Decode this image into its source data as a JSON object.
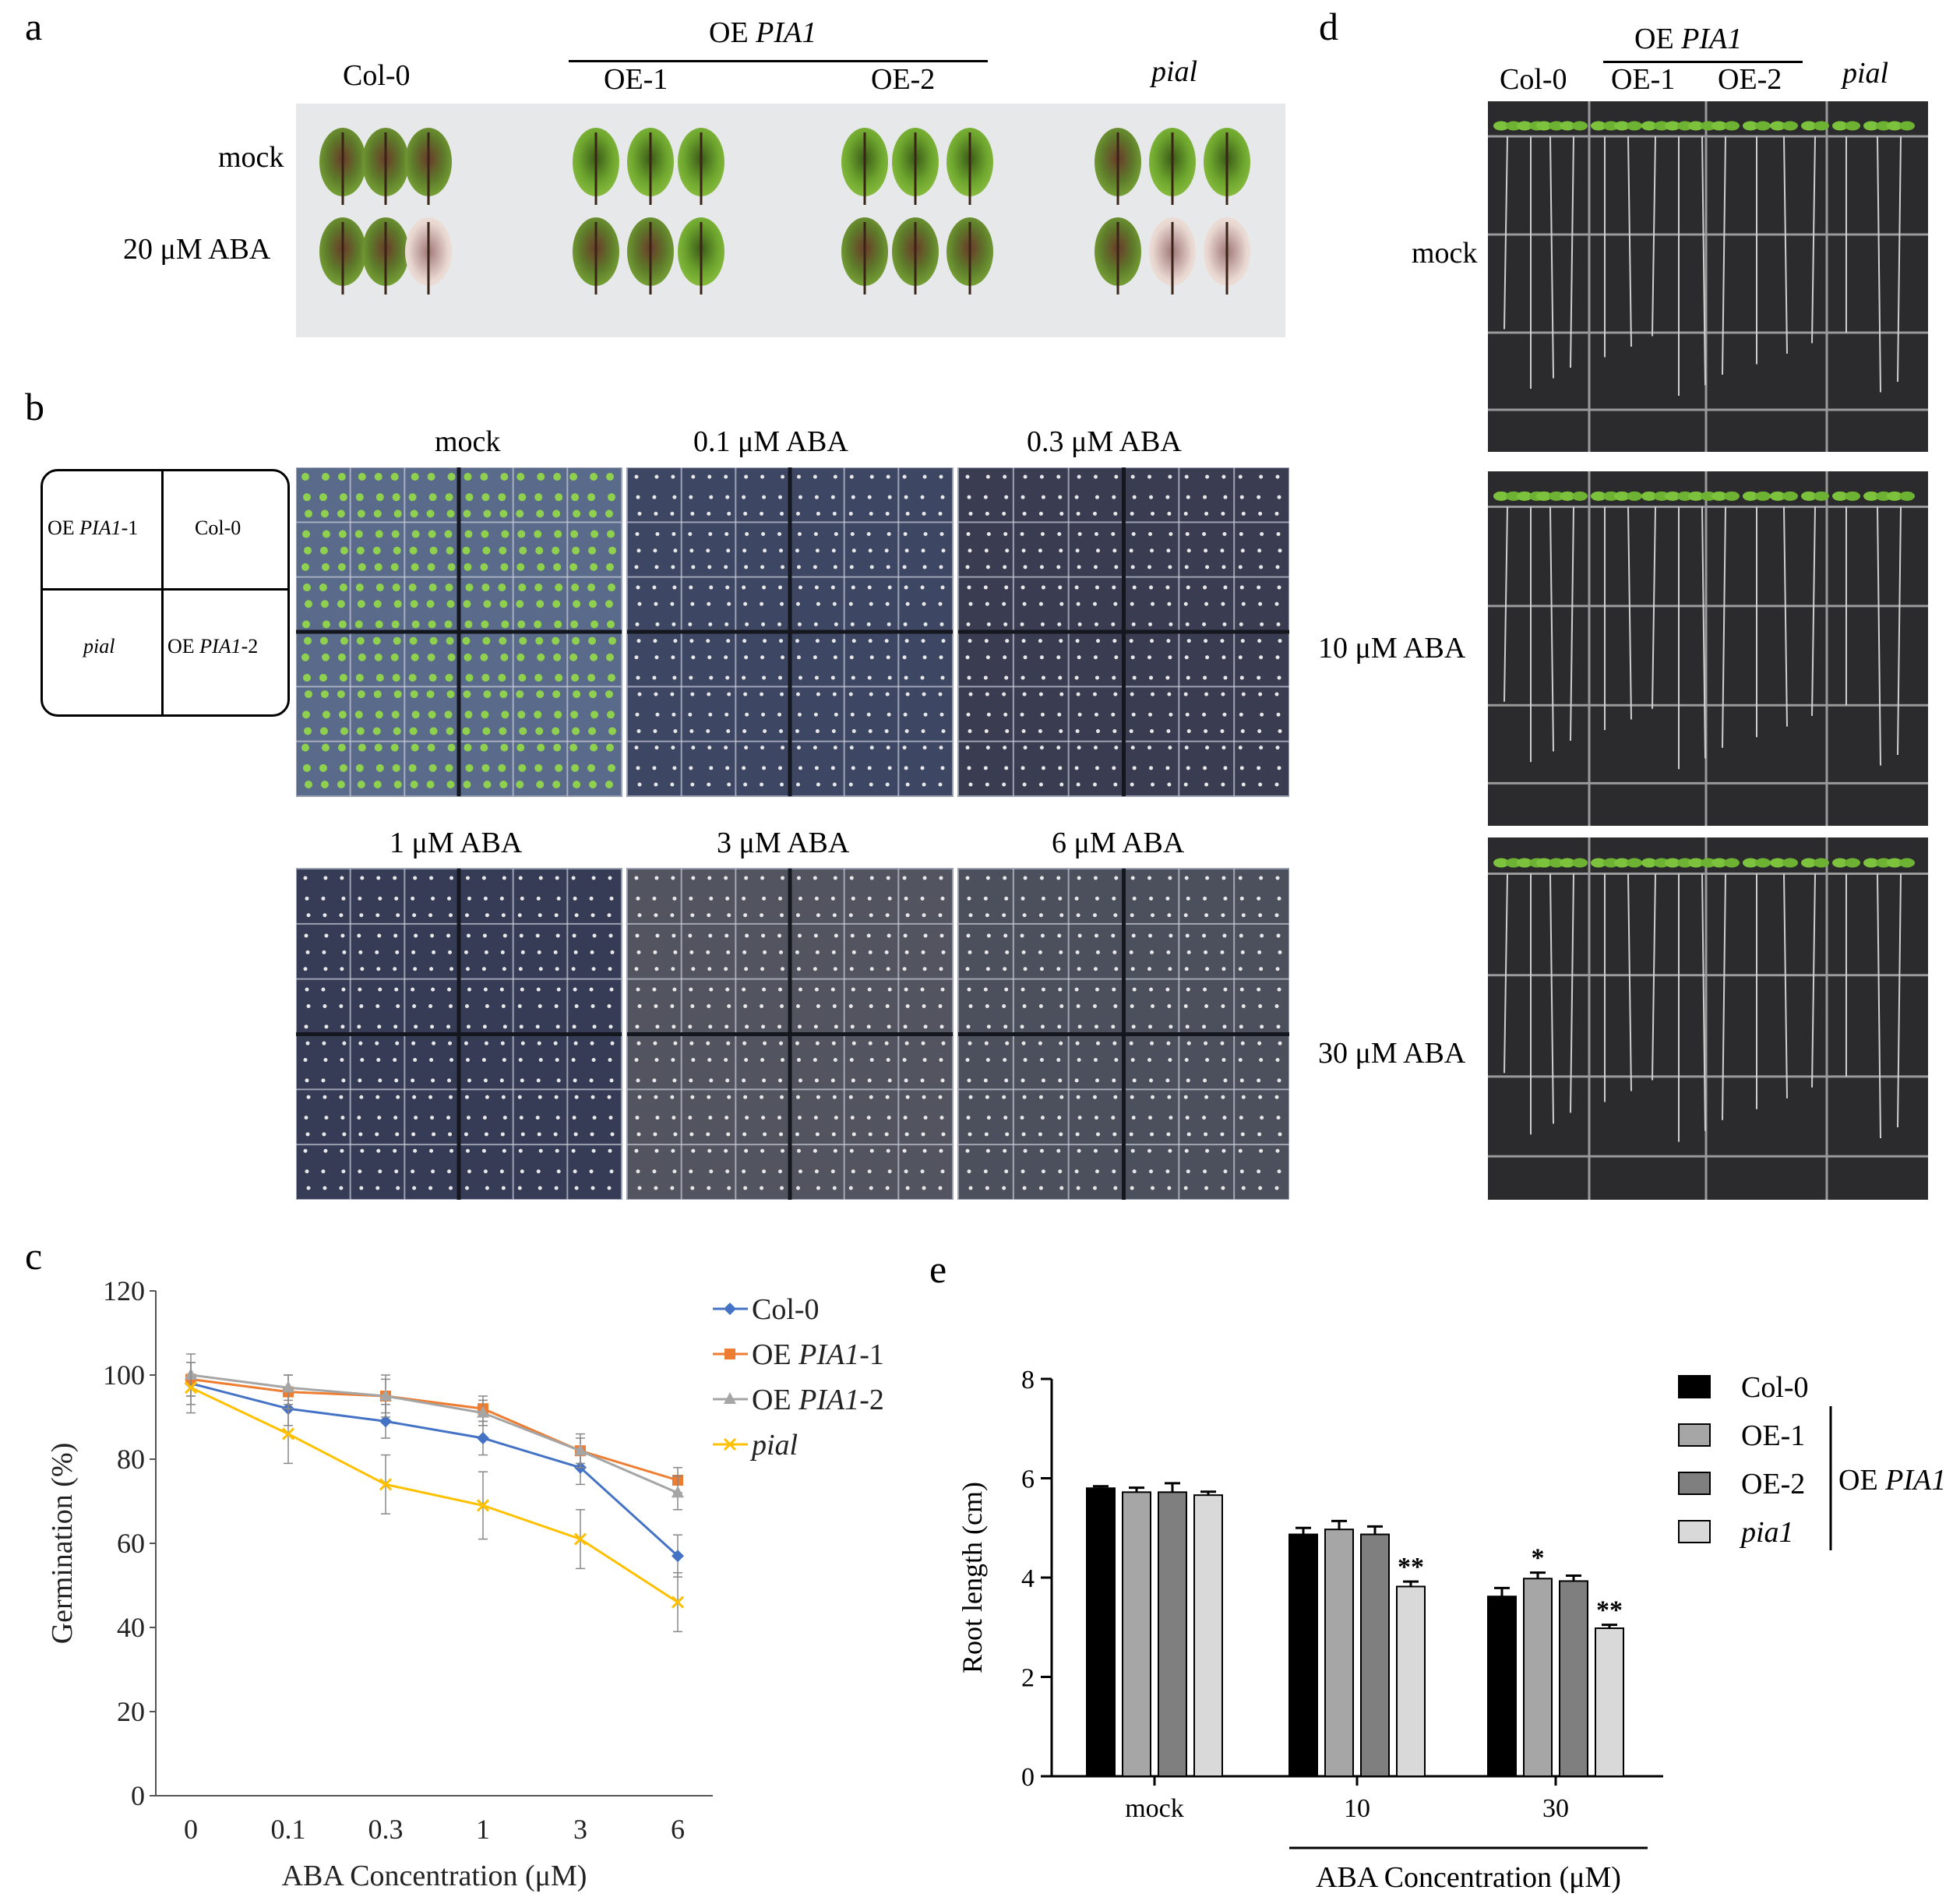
{
  "panel_labels": {
    "a": "a",
    "b": "b",
    "c": "c",
    "d": "d",
    "e": "e"
  },
  "panel_a": {
    "group_label": "OE ",
    "group_gene": "PIA1",
    "columns": [
      "Col-0",
      "OE-1",
      "OE-2",
      "pial"
    ],
    "rows": [
      "mock",
      "20 μM ABA"
    ]
  },
  "panel_b": {
    "layout_key": {
      "top_left_prefix": "OE ",
      "top_left_gene": "PIA1",
      "top_left_suffix": "-1",
      "top_right": "Col-0",
      "bottom_left": "pial",
      "bottom_right_prefix": "OE ",
      "bottom_right_gene": "PIA1",
      "bottom_right_suffix": "-2"
    },
    "plates": [
      "mock",
      "0.1 μM ABA",
      "0.3 μM ABA",
      "1 μM ABA",
      "3 μM ABA",
      "6 μM ABA"
    ]
  },
  "panel_d": {
    "group_label": "OE ",
    "group_gene": "PIA1",
    "columns": [
      "Col-0",
      "OE-1",
      "OE-2",
      "pial"
    ],
    "rows": [
      "mock",
      "10 μM ABA",
      "30 μM ABA"
    ]
  },
  "chart_data": [
    {
      "type": "line",
      "panel": "c",
      "categories": [
        "0",
        "0.1",
        "0.3",
        "1",
        "3",
        "6"
      ],
      "xlabel": "ABA Concentration (μM)",
      "ylabel": "Germination (%)",
      "ylim": [
        0,
        120
      ],
      "yticks": [
        0,
        20,
        40,
        60,
        80,
        100,
        120
      ],
      "legend_position": "top-right",
      "series": [
        {
          "name": "Col-0",
          "name_prefix": "",
          "name_gene": "",
          "name_suffix": "Col-0",
          "color": "#4472c4",
          "marker": "diamond",
          "values": [
            98,
            92,
            89,
            85,
            78,
            57
          ],
          "errors": [
            5,
            4,
            4,
            4,
            4,
            5
          ]
        },
        {
          "name": "OE PIA1-1",
          "name_prefix": "OE ",
          "name_gene": "PIA1",
          "name_suffix": "-1",
          "color": "#ed7d31",
          "marker": "square",
          "values": [
            99,
            96,
            95,
            92,
            82,
            75
          ],
          "errors": [
            4,
            4,
            4,
            3,
            3,
            3
          ]
        },
        {
          "name": "OE PIA1-2",
          "name_prefix": "OE ",
          "name_gene": "PIA1",
          "name_suffix": "-2",
          "color": "#a5a5a5",
          "marker": "triangle",
          "values": [
            100,
            97,
            95,
            91,
            82,
            72
          ],
          "errors": [
            5,
            3,
            5,
            3,
            4,
            4
          ]
        },
        {
          "name": "pial",
          "name_prefix": "",
          "name_gene": "pial",
          "name_suffix": "",
          "color": "#ffc000",
          "marker": "x",
          "values": [
            97,
            86,
            74,
            69,
            61,
            46
          ],
          "errors": [
            6,
            7,
            7,
            8,
            7,
            7
          ]
        }
      ]
    },
    {
      "type": "bar",
      "panel": "e",
      "categories": [
        "mock",
        "10",
        "30"
      ],
      "xlabel": "ABA Concentration (μM)",
      "ylabel": "Root length (cm)",
      "ylim": [
        0,
        8
      ],
      "yticks": [
        0,
        2,
        4,
        6,
        8
      ],
      "legend_position": "right",
      "legend_group_prefix": "OE ",
      "legend_group_gene": "PIA1",
      "series": [
        {
          "name": "Col-0",
          "italic": false,
          "color": "#000000",
          "values": [
            5.8,
            4.87,
            3.62
          ],
          "errors": [
            0.04,
            0.13,
            0.17
          ],
          "sig": [
            "",
            "",
            ""
          ]
        },
        {
          "name": "OE-1",
          "italic": false,
          "color": "#a6a6a6",
          "values": [
            5.72,
            4.97,
            3.98
          ],
          "errors": [
            0.09,
            0.17,
            0.12
          ],
          "sig": [
            "",
            "",
            "*"
          ]
        },
        {
          "name": "OE-2",
          "italic": false,
          "color": "#7f7f7f",
          "values": [
            5.72,
            4.87,
            3.93
          ],
          "errors": [
            0.18,
            0.16,
            0.11
          ],
          "sig": [
            "",
            "",
            ""
          ]
        },
        {
          "name": "pia1",
          "italic": true,
          "color": "#d9d9d9",
          "values": [
            5.66,
            3.82,
            2.98
          ],
          "errors": [
            0.07,
            0.1,
            0.07
          ],
          "sig": [
            "",
            "**",
            "**"
          ]
        }
      ]
    }
  ]
}
